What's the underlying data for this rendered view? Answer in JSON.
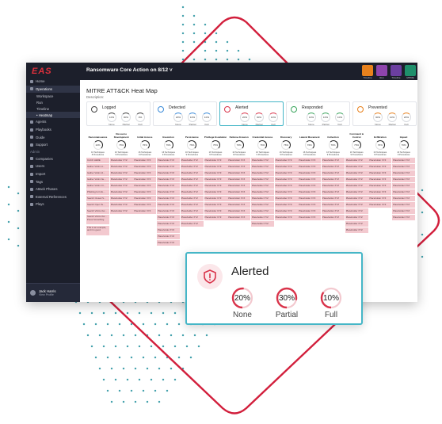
{
  "app": {
    "logo": "EAS",
    "title": "Ransomware Core Action on 8/12",
    "title_caret": "˅"
  },
  "toolbar": [
    {
      "label": "Timeline",
      "color": "#e8811d"
    },
    {
      "label": "Run",
      "color": "#8e44ad"
    },
    {
      "label": "Timeline",
      "color": "#6b3fa0"
    },
    {
      "label": "MITRE",
      "color": "#1f8f6b"
    }
  ],
  "sidebar": {
    "items": [
      {
        "label": "Home",
        "kind": "item"
      },
      {
        "label": "Operations",
        "kind": "item",
        "active": true
      },
      {
        "label": "Workspace",
        "kind": "sub"
      },
      {
        "label": "Run",
        "kind": "sub"
      },
      {
        "label": "Timeline",
        "kind": "sub"
      },
      {
        "label": "• Heatmap",
        "kind": "sub",
        "active": true
      },
      {
        "label": "Agents",
        "kind": "item"
      },
      {
        "label": "Playbooks",
        "kind": "item"
      },
      {
        "label": "Guide",
        "kind": "item"
      },
      {
        "label": "Support",
        "kind": "item"
      },
      {
        "label": "Admin",
        "kind": "head"
      },
      {
        "label": "Companies",
        "kind": "item"
      },
      {
        "label": "Users",
        "kind": "item"
      },
      {
        "label": "Import",
        "kind": "item"
      },
      {
        "label": "Tags",
        "kind": "item"
      },
      {
        "label": "Attack Phases",
        "kind": "item"
      },
      {
        "label": "External References",
        "kind": "item"
      },
      {
        "label": "Plays",
        "kind": "item"
      }
    ],
    "user": {
      "name": "Jack Harris",
      "sub": "View Profile"
    }
  },
  "page": {
    "title": "MITRE ATT&CK Heat Map",
    "description": "Description:"
  },
  "cards": [
    {
      "name": "Logged",
      "color": "#444444",
      "icon": "clipboard-icon",
      "dials": [
        {
          "value": "10%",
          "label": "None"
        },
        {
          "value": "90%",
          "label": "Partial"
        },
        {
          "value": "0%",
          "label": "Full"
        }
      ]
    },
    {
      "name": "Detected",
      "color": "#3b8bd9",
      "icon": "eye-icon",
      "dials": [
        {
          "value": "20%",
          "label": "None"
        },
        {
          "value": "10%",
          "label": "Partial"
        },
        {
          "value": "10%",
          "label": "Full"
        }
      ]
    },
    {
      "name": "Alerted",
      "color": "#d9344b",
      "icon": "shield-alert-icon",
      "selected": true,
      "dials": [
        {
          "value": "20%",
          "label": "None"
        },
        {
          "value": "30%",
          "label": "Partial"
        },
        {
          "value": "10%",
          "label": "Full"
        }
      ]
    },
    {
      "name": "Responded",
      "color": "#3aa55c",
      "icon": "chat-icon",
      "dials": [
        {
          "value": "10%",
          "label": "None"
        },
        {
          "value": "10%",
          "label": "Partial"
        },
        {
          "value": "10%",
          "label": "Full"
        }
      ]
    },
    {
      "name": "Prevented",
      "color": "#e8811d",
      "icon": "ban-icon",
      "dials": [
        {
          "value": "30%",
          "label": "None"
        },
        {
          "value": "10%",
          "label": "Partial"
        },
        {
          "value": "20%",
          "label": "Full"
        }
      ]
    }
  ],
  "columns": [
    {
      "name": "Reconnaissance",
      "pct": "10%",
      "stat": "16 Techniques\n8 Procedures",
      "rows": 8,
      "cells": [
        "CLICK HERE",
        "Gather Victim H...",
        "Gather Victim Id...",
        "Gather Victim Ne...",
        "Gather Victim Or...",
        "Phishing for Info...",
        "Search Closed S...",
        "Search Open Te...",
        "Search Victim-Ow...",
        "Search Victim-Ow... Press Something",
        "This is an example, and it is good."
      ]
    },
    {
      "name": "Resource Development",
      "pct": "76%",
      "stat": "16 Techniques\n9 Procedures",
      "rows": 8,
      "cells": [
        "Placeholder XYZ",
        "Placeholder XYZ",
        "Placeholder XYZ",
        "Placeholder XYZ",
        "Placeholder XYZ",
        "Placeholder XYZ",
        "Placeholder XYZ",
        "Placeholder XYZ",
        "Placeholder XYZ"
      ]
    },
    {
      "name": "Initial Access",
      "pct": "76%",
      "stat": "16 Techniques\n9 Procedures",
      "rows": 8,
      "cells": [
        "Placeholder XYZ",
        "Placeholder XYZ",
        "Placeholder XYZ",
        "Placeholder XYZ",
        "Placeholder XYZ",
        "Placeholder XYZ",
        "Placeholder XYZ",
        "Placeholder XYZ",
        "Placeholder XYZ"
      ]
    },
    {
      "name": "Execution",
      "pct": "76%",
      "stat": "16 Techniques\n9 Procedures",
      "rows": 8,
      "cells": [
        "Placeholder XYZ",
        "Placeholder XYZ",
        "Placeholder XYZ",
        "Placeholder XYZ",
        "Placeholder XYZ",
        "Placeholder XYZ",
        "Placeholder XYZ",
        "Placeholder XYZ",
        "Placeholder XYZ",
        "Placeholder XYZ",
        "Placeholder XYZ",
        "Placeholder XYZ",
        "Placeholder XYZ",
        "Placeholder XYZ"
      ]
    },
    {
      "name": "Persistence",
      "pct": "76%",
      "stat": "16 Techniques\n9 Procedures",
      "rows": 8,
      "cells": [
        "Placeholder XYZ",
        "Placeholder XYZ",
        "Placeholder XYZ",
        "Placeholder XYZ",
        "Placeholder XYZ",
        "Placeholder XYZ",
        "Placeholder XYZ",
        "Placeholder XYZ",
        "Placeholder XYZ",
        "Placeholder XYZ",
        "Placeholder XYZ"
      ]
    },
    {
      "name": "Privilege Escalation",
      "pct": "76%",
      "stat": "16 Techniques\n9 Procedures",
      "rows": 8,
      "cells": [
        "Placeholder XYZ",
        "Placeholder XYZ",
        "Placeholder XYZ",
        "Placeholder XYZ",
        "Placeholder XYZ",
        "Placeholder XYZ",
        "Placeholder XYZ",
        "Placeholder XYZ",
        "Placeholder XYZ",
        "Placeholder XYZ"
      ]
    },
    {
      "name": "Defense Evasion",
      "pct": "76%",
      "stat": "16 Techniques\n9 Procedures",
      "rows": 8,
      "cells": [
        "Placeholder XYZ",
        "Placeholder XYZ",
        "Placeholder XYZ",
        "Placeholder XYZ",
        "Placeholder XYZ",
        "Placeholder XYZ",
        "Placeholder XYZ",
        "Placeholder XYZ",
        "Placeholder XYZ",
        "Placeholder XYZ"
      ]
    },
    {
      "name": "Credential Access",
      "pct": "76%",
      "stat": "16 Techniques\n9 Procedures",
      "rows": 8,
      "cells": [
        "Placeholder XYZ",
        "Placeholder XYZ",
        "Placeholder XYZ",
        "Placeholder XYZ",
        "Placeholder XYZ",
        "Placeholder XYZ",
        "Placeholder XYZ",
        "Placeholder XYZ",
        "Placeholder XYZ",
        "Placeholder XYZ",
        "Placeholder XYZ"
      ]
    },
    {
      "name": "Discovery",
      "pct": "76%",
      "stat": "16 Techniques\n9 Procedures",
      "rows": 8,
      "cells": [
        "Placeholder XYZ",
        "Placeholder XYZ",
        "Placeholder XYZ",
        "Placeholder XYZ",
        "Placeholder XYZ",
        "Placeholder XYZ",
        "Placeholder XYZ",
        "Placeholder XYZ",
        "Placeholder XYZ",
        "Placeholder XYZ"
      ]
    },
    {
      "name": "Lateral Movement",
      "pct": "76%",
      "stat": "16 Techniques\n9 Procedures",
      "rows": 8,
      "cells": [
        "Placeholder XYZ",
        "Placeholder XYZ",
        "Placeholder XYZ",
        "Placeholder XYZ",
        "Placeholder XYZ",
        "Placeholder XYZ",
        "Placeholder XYZ",
        "Placeholder XYZ",
        "Placeholder XYZ",
        "Placeholder XYZ"
      ]
    },
    {
      "name": "Collection",
      "pct": "76%",
      "stat": "16 Techniques\n9 Procedures",
      "rows": 8,
      "cells": [
        "Placeholder XYZ",
        "Placeholder XYZ",
        "Placeholder XYZ",
        "Placeholder XYZ",
        "Placeholder XYZ",
        "Placeholder XYZ",
        "Placeholder XYZ",
        "Placeholder XYZ",
        "Placeholder XYZ",
        "Placeholder XYZ"
      ]
    },
    {
      "name": "Command & Control",
      "pct": "76%",
      "stat": "16 Techniques\n9 Procedures",
      "rows": 8,
      "cells": [
        "Placeholder XYZ",
        "Placeholder XYZ",
        "Placeholder XYZ",
        "Placeholder XYZ",
        "Placeholder XYZ",
        "Placeholder XYZ",
        "Placeholder XYZ",
        "Placeholder XYZ",
        "Placeholder XYZ",
        "Placeholder XYZ",
        "Placeholder XYZ",
        "Placeholder XYZ"
      ]
    },
    {
      "name": "Exfiltration",
      "pct": "76%",
      "stat": "16 Techniques\n9 Procedures",
      "rows": 8,
      "cells": [
        "Placeholder XYZ",
        "Placeholder XYZ",
        "Placeholder XYZ",
        "Placeholder XYZ",
        "Placeholder XYZ",
        "Placeholder XYZ",
        "Placeholder XYZ",
        "Placeholder XYZ"
      ]
    },
    {
      "name": "Impact",
      "pct": "76%",
      "stat": "16 Techniques\n9 Procedures",
      "rows": 8,
      "cells": [
        "Placeholder XYZ",
        "Placeholder XYZ",
        "Placeholder XYZ",
        "Placeholder XYZ",
        "Placeholder XYZ",
        "Placeholder XYZ",
        "Placeholder XYZ",
        "Placeholder XYZ",
        "Placeholder XYZ",
        "Placeholder XYZ"
      ]
    }
  ],
  "popup": {
    "title": "Alerted",
    "icon": "shield-alert-icon",
    "color": "#d9344b",
    "dials": [
      {
        "value": "20%",
        "label": "None",
        "fill": 0.2
      },
      {
        "value": "30%",
        "label": "Partial",
        "fill": 0.3
      },
      {
        "value": "10%",
        "label": "Full",
        "fill": 0.1
      }
    ]
  },
  "colors": {
    "accent": "#45b6c7",
    "brand_red": "#d9344b",
    "heat_cell": "#f3c9cf",
    "sidebar_bg": "#1c1f2b"
  }
}
